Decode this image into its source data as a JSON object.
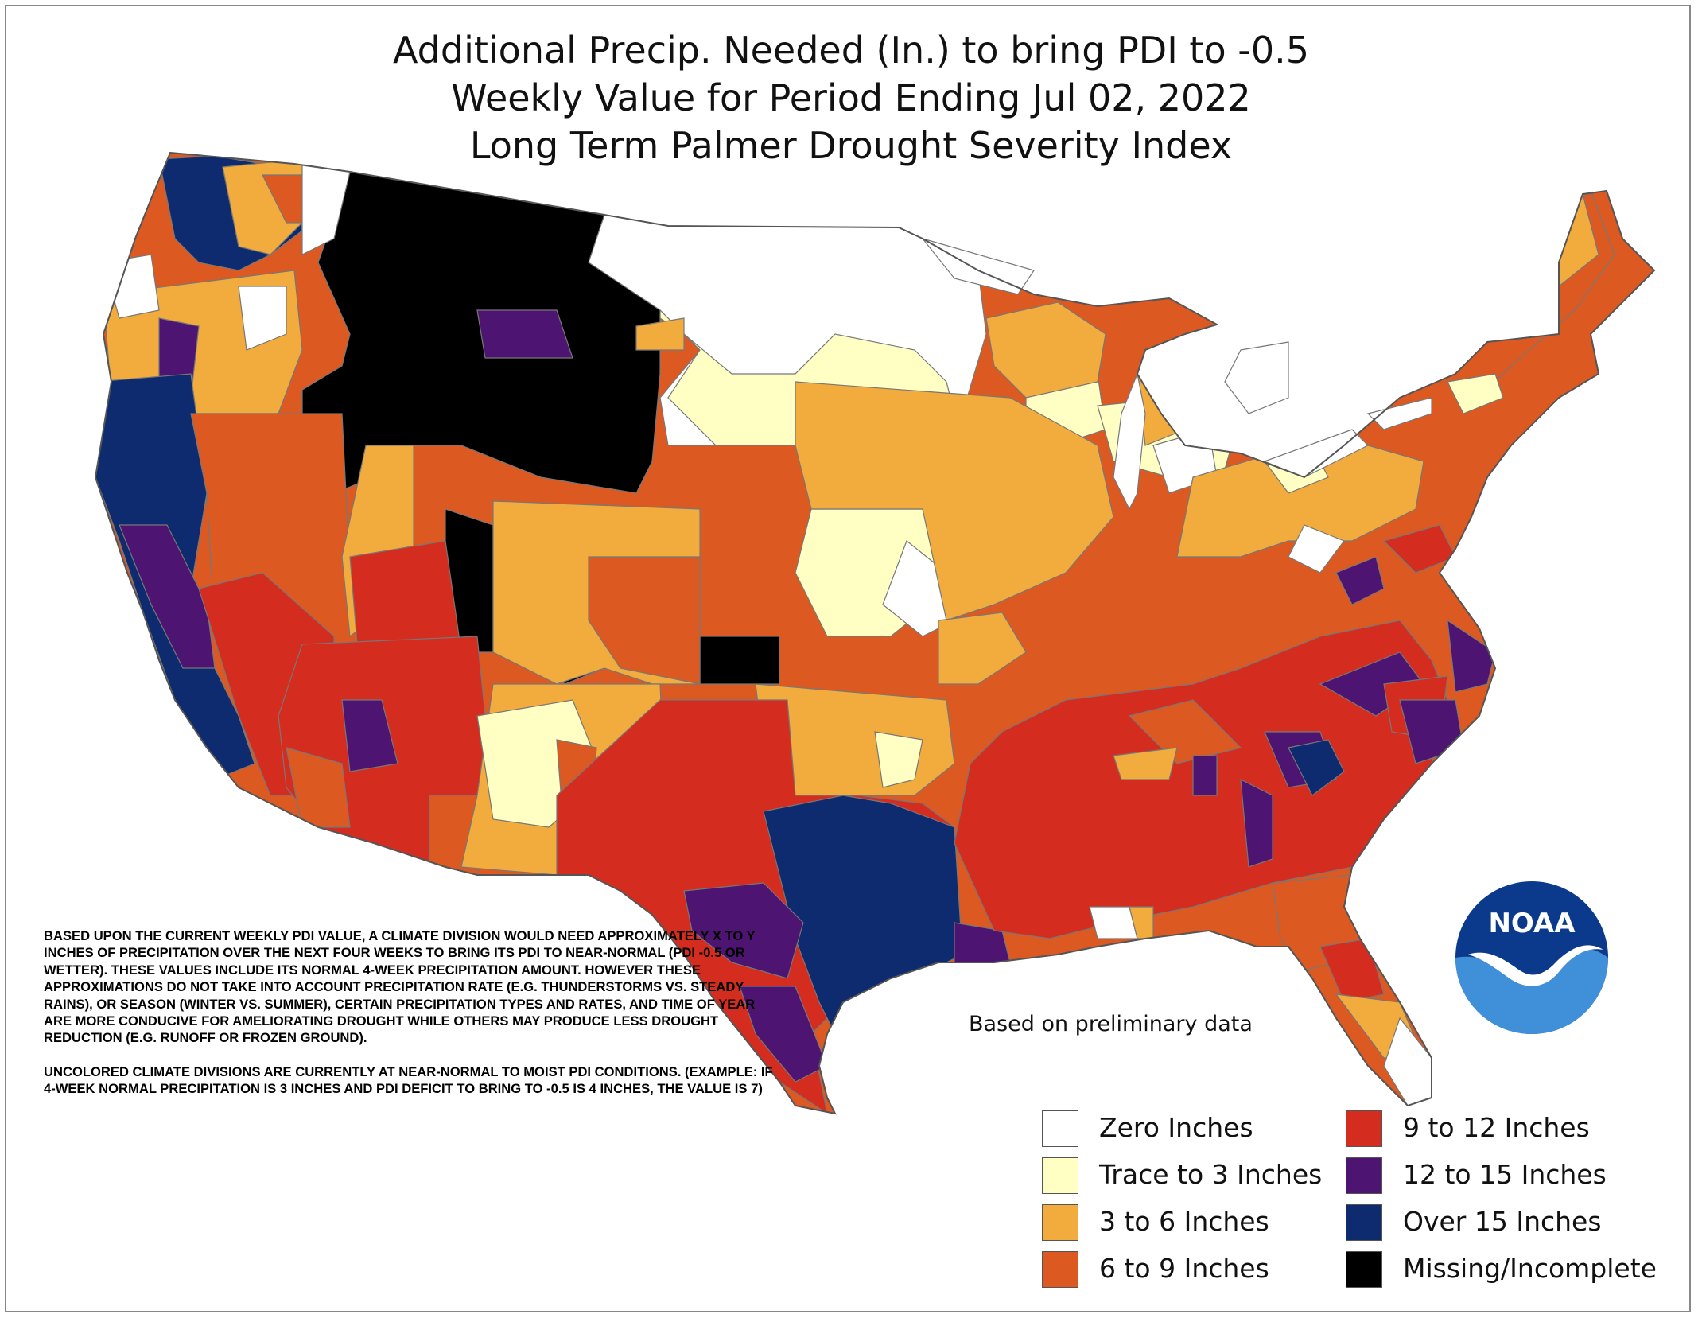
{
  "title": {
    "line1": "Additional Precip. Needed (In.) to bring PDI to -0.5",
    "line2": "Weekly Value for Period Ending Jul 02, 2022",
    "line3": "Long Term Palmer Drought Severity Index"
  },
  "colors": {
    "zero": "#ffffff",
    "trace_to_3": "#ffffc4",
    "3_to_6": "#f2ab3d",
    "6_to_9": "#dc5a22",
    "9_to_12": "#d42d20",
    "12_to_15": "#4e1471",
    "over_15": "#0d2b6e",
    "missing": "#000000"
  },
  "disclaimer": {
    "paragraph1": "BASED UPON THE CURRENT WEEKLY PDI VALUE, A CLIMATE DIVISION WOULD NEED APPROXIMATELY X TO Y INCHES OF PRECIPITATION OVER THE NEXT FOUR WEEKS TO BRING ITS PDI TO NEAR-NORMAL (PDI -0.5 OR WETTER). THESE VALUES INCLUDE ITS NORMAL 4-WEEK PRECIPITATION AMOUNT. HOWEVER THESE APPROXIMATIONS DO NOT TAKE INTO ACCOUNT PRECIPITATION RATE (E.G. THUNDERSTORMS VS. STEADY RAINS), OR SEASON (WINTER VS. SUMMER), CERTAIN PRECIPITATION TYPES AND RATES, AND TIME OF YEAR ARE MORE CONDUCIVE FOR AMELIORATING DROUGHT WHILE OTHERS MAY PRODUCE LESS DROUGHT REDUCTION (E.G. RUNOFF OR FROZEN GROUND).",
    "paragraph2": "UNCOLORED CLIMATE DIVISIONS ARE CURRENTLY AT NEAR-NORMAL TO MOIST PDI CONDITIONS. (EXAMPLE: IF 4-WEEK NORMAL PRECIPITATION IS 3 INCHES AND PDI DEFICIT TO BRING TO -0.5 IS 4 INCHES, THE VALUE IS 7)"
  },
  "note": "Based on preliminary data",
  "legend": [
    {
      "label": "Zero Inches",
      "color": "#ffffff"
    },
    {
      "label": "Trace to 3 Inches",
      "color": "#ffffc4"
    },
    {
      "label": "3 to 6 Inches",
      "color": "#f2ab3d"
    },
    {
      "label": "6 to 9 Inches",
      "color": "#dc5a22"
    },
    {
      "label": "9 to 12 Inches",
      "color": "#d42d20"
    },
    {
      "label": "12 to 15 Inches",
      "color": "#4e1471"
    },
    {
      "label": "Over 15 Inches",
      "color": "#0d2b6e"
    },
    {
      "label": "Missing/Incomplete",
      "color": "#000000"
    }
  ],
  "logo": {
    "text": "NOAA",
    "icon": "noaa-logo-icon"
  }
}
